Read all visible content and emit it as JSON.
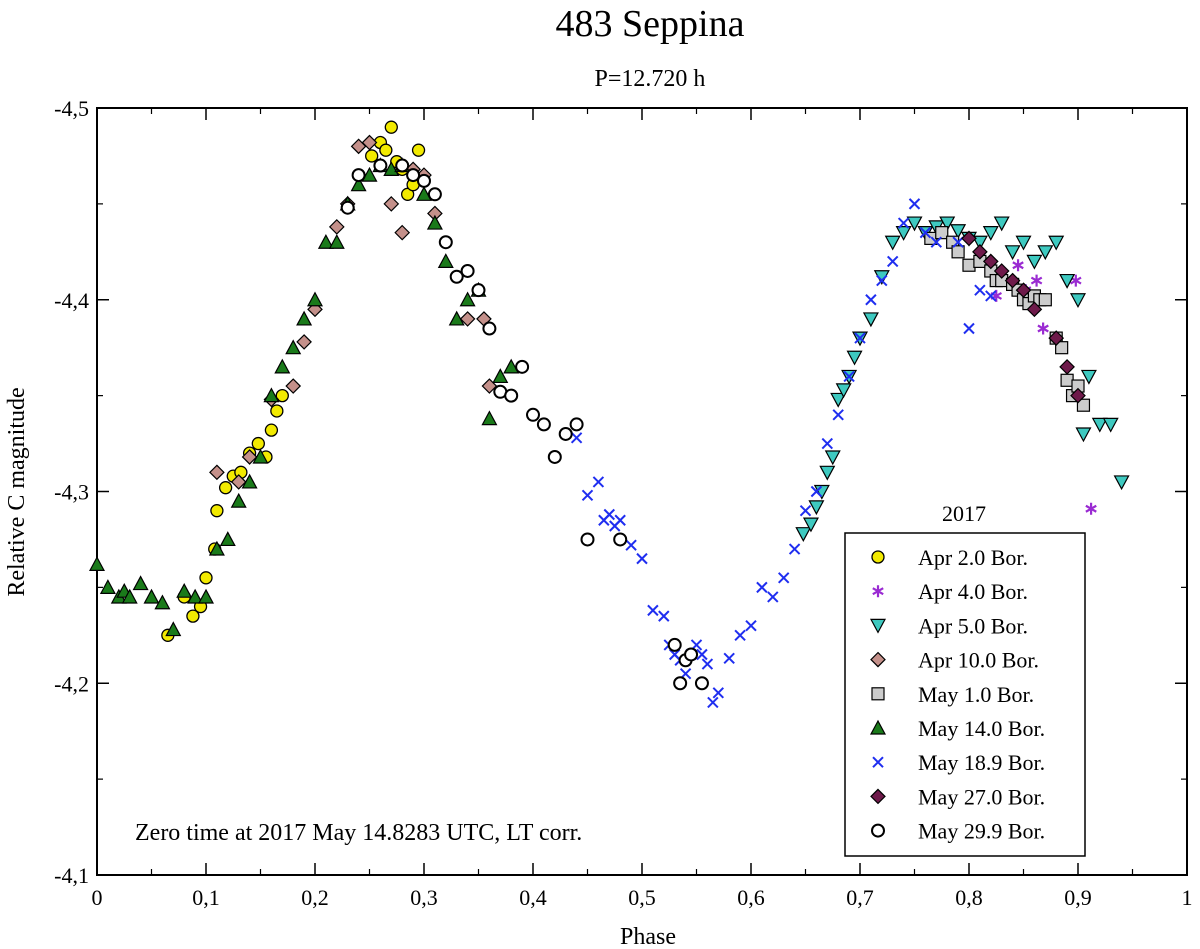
{
  "chart_data": {
    "type": "scatter",
    "title": "483 Seppina",
    "subtitle": "P=12.720 h",
    "xlabel": "Phase",
    "ylabel": "Relative C magnitude",
    "xlim": [
      0,
      1
    ],
    "ylim": [
      -4.5,
      -4.1
    ],
    "y_inverted": true,
    "x_ticks": [
      0,
      0.1,
      0.2,
      0.3,
      0.4,
      0.5,
      0.6,
      0.7,
      0.8,
      0.9,
      1
    ],
    "x_tick_labels": [
      "0",
      "0,1",
      "0,2",
      "0,3",
      "0,4",
      "0,5",
      "0,6",
      "0,7",
      "0,8",
      "0,9",
      "1"
    ],
    "y_ticks": [
      -4.5,
      -4.4,
      -4.3,
      -4.2,
      -4.1
    ],
    "y_tick_labels": [
      "-4,5",
      "-4,4",
      "-4,3",
      "-4,2",
      "-4,1"
    ],
    "grid": false,
    "annotation": "Zero time at 2017 May 14.8283 UTC, LT corr.",
    "legend_title": "2017",
    "legend_position": "bottom-right",
    "series": [
      {
        "name": "Apr 2.0 Bor.",
        "marker": "circle",
        "color": "#f2ea00",
        "x": [
          0.065,
          0.08,
          0.088,
          0.095,
          0.1,
          0.108,
          0.11,
          0.118,
          0.125,
          0.132,
          0.14,
          0.148,
          0.155,
          0.16,
          0.165,
          0.17,
          0.252,
          0.26,
          0.265,
          0.27,
          0.275,
          0.28,
          0.285,
          0.29,
          0.295
        ],
        "y": [
          -4.225,
          -4.245,
          -4.235,
          -4.24,
          -4.255,
          -4.27,
          -4.29,
          -4.302,
          -4.308,
          -4.31,
          -4.32,
          -4.325,
          -4.318,
          -4.332,
          -4.342,
          -4.35,
          -4.475,
          -4.482,
          -4.478,
          -4.49,
          -4.472,
          -4.468,
          -4.455,
          -4.46,
          -4.478
        ]
      },
      {
        "name": "Apr 4.0 Bor.",
        "marker": "asterisk",
        "color": "#9a2bd2",
        "x": [
          0.825,
          0.845,
          0.852,
          0.862,
          0.868,
          0.898,
          0.912
        ],
        "y": [
          -4.402,
          -4.418,
          -4.405,
          -4.41,
          -4.385,
          -4.41,
          -4.291
        ]
      },
      {
        "name": "Apr 5.0 Bor.",
        "marker": "triangle-down",
        "color": "#3ec9c0",
        "x": [
          0.648,
          0.655,
          0.66,
          0.665,
          0.67,
          0.675,
          0.68,
          0.685,
          0.69,
          0.695,
          0.7,
          0.71,
          0.72,
          0.73,
          0.74,
          0.75,
          0.76,
          0.77,
          0.78,
          0.79,
          0.8,
          0.81,
          0.82,
          0.83,
          0.84,
          0.85,
          0.86,
          0.87,
          0.88,
          0.89,
          0.9,
          0.905,
          0.91,
          0.92,
          0.93,
          0.94
        ],
        "y": [
          -4.278,
          -4.283,
          -4.292,
          -4.3,
          -4.31,
          -4.318,
          -4.348,
          -4.353,
          -4.36,
          -4.37,
          -4.38,
          -4.39,
          -4.412,
          -4.43,
          -4.435,
          -4.44,
          -4.435,
          -4.438,
          -4.44,
          -4.436,
          -4.432,
          -4.43,
          -4.435,
          -4.44,
          -4.425,
          -4.43,
          -4.42,
          -4.425,
          -4.43,
          -4.41,
          -4.4,
          -4.33,
          -4.36,
          -4.335,
          -4.335,
          -4.305
        ]
      },
      {
        "name": "Apr 10.0 Bor.",
        "marker": "diamond",
        "color": "#c4908a",
        "x": [
          0.11,
          0.13,
          0.14,
          0.16,
          0.18,
          0.19,
          0.2,
          0.22,
          0.23,
          0.24,
          0.25,
          0.27,
          0.28,
          0.29,
          0.3,
          0.31,
          0.34,
          0.355,
          0.36
        ],
        "y": [
          -4.31,
          -4.305,
          -4.318,
          -4.348,
          -4.355,
          -4.378,
          -4.395,
          -4.438,
          -4.45,
          -4.48,
          -4.482,
          -4.45,
          -4.435,
          -4.468,
          -4.465,
          -4.445,
          -4.39,
          -4.39,
          -4.355
        ]
      },
      {
        "name": "May 1.0 Bor.",
        "marker": "square",
        "color": "#cccccc",
        "x": [
          0.765,
          0.775,
          0.785,
          0.79,
          0.8,
          0.81,
          0.82,
          0.825,
          0.83,
          0.84,
          0.845,
          0.85,
          0.855,
          0.86,
          0.865,
          0.87,
          0.88,
          0.885,
          0.89,
          0.895,
          0.9,
          0.905
        ],
        "y": [
          -4.432,
          -4.435,
          -4.43,
          -4.425,
          -4.418,
          -4.42,
          -4.415,
          -4.41,
          -4.41,
          -4.408,
          -4.405,
          -4.4,
          -4.398,
          -4.402,
          -4.4,
          -4.4,
          -4.38,
          -4.375,
          -4.358,
          -4.35,
          -4.355,
          -4.345
        ]
      },
      {
        "name": "May 14.0 Bor.",
        "marker": "triangle-up",
        "color": "#1a7a1a",
        "x": [
          0.0,
          0.01,
          0.02,
          0.025,
          0.03,
          0.04,
          0.05,
          0.06,
          0.07,
          0.08,
          0.09,
          0.1,
          0.11,
          0.12,
          0.13,
          0.14,
          0.15,
          0.16,
          0.17,
          0.18,
          0.19,
          0.2,
          0.21,
          0.22,
          0.23,
          0.24,
          0.25,
          0.26,
          0.27,
          0.28,
          0.3,
          0.31,
          0.32,
          0.33,
          0.34,
          0.35,
          0.36,
          0.37,
          0.38
        ],
        "y": [
          -4.262,
          -4.25,
          -4.245,
          -4.248,
          -4.245,
          -4.252,
          -4.245,
          -4.242,
          -4.228,
          -4.248,
          -4.245,
          -4.245,
          -4.27,
          -4.275,
          -4.295,
          -4.305,
          -4.318,
          -4.35,
          -4.365,
          -4.375,
          -4.39,
          -4.4,
          -4.43,
          -4.43,
          -4.45,
          -4.46,
          -4.465,
          -4.47,
          -4.468,
          -4.47,
          -4.455,
          -4.44,
          -4.42,
          -4.39,
          -4.4,
          -4.405,
          -4.338,
          -4.36,
          -4.365
        ]
      },
      {
        "name": "May 18.9 Bor.",
        "marker": "x",
        "color": "#1f2ef0",
        "x": [
          0.44,
          0.45,
          0.46,
          0.465,
          0.47,
          0.475,
          0.48,
          0.49,
          0.5,
          0.51,
          0.52,
          0.525,
          0.53,
          0.535,
          0.54,
          0.545,
          0.55,
          0.555,
          0.56,
          0.565,
          0.57,
          0.58,
          0.59,
          0.6,
          0.61,
          0.62,
          0.63,
          0.64,
          0.65,
          0.66,
          0.67,
          0.68,
          0.69,
          0.7,
          0.71,
          0.72,
          0.73,
          0.74,
          0.75,
          0.76,
          0.77,
          0.79,
          0.8,
          0.81,
          0.82
        ],
        "y": [
          -4.328,
          -4.298,
          -4.305,
          -4.285,
          -4.288,
          -4.282,
          -4.285,
          -4.272,
          -4.265,
          -4.238,
          -4.235,
          -4.22,
          -4.215,
          -4.212,
          -4.205,
          -4.215,
          -4.22,
          -4.215,
          -4.21,
          -4.19,
          -4.195,
          -4.213,
          -4.225,
          -4.23,
          -4.25,
          -4.245,
          -4.255,
          -4.27,
          -4.29,
          -4.3,
          -4.325,
          -4.34,
          -4.36,
          -4.38,
          -4.4,
          -4.41,
          -4.42,
          -4.44,
          -4.45,
          -4.435,
          -4.43,
          -4.43,
          -4.385,
          -4.405,
          -4.402
        ]
      },
      {
        "name": "May 27.0 Bor.",
        "marker": "diamond",
        "color": "#6e1a4a",
        "x": [
          0.8,
          0.81,
          0.82,
          0.83,
          0.84,
          0.85,
          0.86,
          0.88,
          0.89,
          0.9
        ],
        "y": [
          -4.432,
          -4.425,
          -4.42,
          -4.415,
          -4.41,
          -4.405,
          -4.395,
          -4.38,
          -4.365,
          -4.35
        ]
      },
      {
        "name": "May 29.9 Bor.",
        "marker": "open-circle",
        "color": "#000000",
        "x": [
          0.23,
          0.24,
          0.26,
          0.28,
          0.29,
          0.3,
          0.31,
          0.32,
          0.33,
          0.34,
          0.35,
          0.36,
          0.37,
          0.38,
          0.39,
          0.4,
          0.41,
          0.42,
          0.43,
          0.44,
          0.45,
          0.48,
          0.53,
          0.535,
          0.54,
          0.545,
          0.555
        ],
        "y": [
          -4.448,
          -4.465,
          -4.47,
          -4.47,
          -4.465,
          -4.462,
          -4.455,
          -4.43,
          -4.412,
          -4.415,
          -4.405,
          -4.385,
          -4.352,
          -4.35,
          -4.365,
          -4.34,
          -4.335,
          -4.318,
          -4.33,
          -4.335,
          -4.275,
          -4.275,
          -4.22,
          -4.2,
          -4.212,
          -4.215,
          -4.2
        ]
      }
    ]
  }
}
